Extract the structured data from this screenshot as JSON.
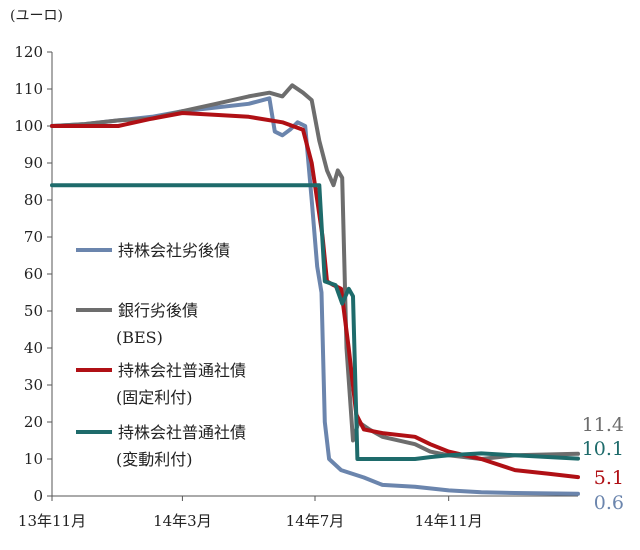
{
  "chart_data": {
    "type": "line",
    "ylabel": "(ユーロ)",
    "ylim": [
      0,
      120
    ],
    "yticks": [
      0,
      10,
      20,
      30,
      40,
      50,
      60,
      70,
      80,
      90,
      100,
      110,
      120
    ],
    "x_tick_labels": [
      "13年11月",
      "14年3月",
      "14年7月",
      "14年11月"
    ],
    "x_tick_dates": [
      "2013-11-01",
      "2014-03-01",
      "2014-07-01",
      "2014-11-01"
    ],
    "x_range": [
      "2013-11-01",
      "2015-02-28"
    ],
    "grid": false,
    "legend_position": "center-left",
    "series": [
      {
        "name": "持株会社劣後債",
        "color": "#6b85ad",
        "end_label": "0.6",
        "points": [
          [
            "2013-11-01",
            100
          ],
          [
            "2013-12-01",
            100.5
          ],
          [
            "2014-01-01",
            101.5
          ],
          [
            "2014-02-01",
            102.5
          ],
          [
            "2014-03-01",
            104
          ],
          [
            "2014-04-01",
            105
          ],
          [
            "2014-05-01",
            106
          ],
          [
            "2014-05-20",
            107.5
          ],
          [
            "2014-05-25",
            98.5
          ],
          [
            "2014-06-01",
            97.5
          ],
          [
            "2014-06-08",
            99
          ],
          [
            "2014-06-15",
            101
          ],
          [
            "2014-06-22",
            100
          ],
          [
            "2014-06-28",
            80
          ],
          [
            "2014-07-03",
            62
          ],
          [
            "2014-07-07",
            55
          ],
          [
            "2014-07-10",
            20
          ],
          [
            "2014-07-14",
            10
          ],
          [
            "2014-07-25",
            7
          ],
          [
            "2014-08-15",
            5
          ],
          [
            "2014-09-01",
            3
          ],
          [
            "2014-10-01",
            2.5
          ],
          [
            "2014-11-01",
            1.5
          ],
          [
            "2014-12-01",
            1
          ],
          [
            "2015-01-01",
            0.8
          ],
          [
            "2015-02-28",
            0.6
          ]
        ]
      },
      {
        "name": "銀行劣後債\n(BES)",
        "color": "#6d6d6d",
        "end_label": "11.4",
        "points": [
          [
            "2013-11-01",
            100
          ],
          [
            "2013-12-01",
            100.5
          ],
          [
            "2014-01-01",
            101.5
          ],
          [
            "2014-02-01",
            102
          ],
          [
            "2014-03-01",
            104
          ],
          [
            "2014-04-01",
            106
          ],
          [
            "2014-05-01",
            108
          ],
          [
            "2014-05-20",
            109
          ],
          [
            "2014-06-01",
            108
          ],
          [
            "2014-06-10",
            111
          ],
          [
            "2014-06-20",
            109
          ],
          [
            "2014-06-28",
            107
          ],
          [
            "2014-07-05",
            96
          ],
          [
            "2014-07-12",
            88
          ],
          [
            "2014-07-18",
            84
          ],
          [
            "2014-07-22",
            88
          ],
          [
            "2014-07-26",
            86
          ],
          [
            "2014-07-30",
            40
          ],
          [
            "2014-08-05",
            15
          ],
          [
            "2014-08-10",
            20
          ],
          [
            "2014-08-20",
            18
          ],
          [
            "2014-09-01",
            16
          ],
          [
            "2014-10-01",
            14
          ],
          [
            "2014-10-15",
            12
          ],
          [
            "2014-11-01",
            11
          ],
          [
            "2014-12-01",
            10
          ],
          [
            "2015-01-01",
            11
          ],
          [
            "2015-02-28",
            11.4
          ]
        ]
      },
      {
        "name": "持株会社普通社債\n(固定利付)",
        "color": "#b01015",
        "end_label": "5.1",
        "points": [
          [
            "2013-11-01",
            100
          ],
          [
            "2014-01-01",
            100
          ],
          [
            "2014-02-01",
            102
          ],
          [
            "2014-03-01",
            103.5
          ],
          [
            "2014-04-01",
            103
          ],
          [
            "2014-05-01",
            102.5
          ],
          [
            "2014-06-01",
            101
          ],
          [
            "2014-06-20",
            99
          ],
          [
            "2014-06-28",
            90
          ],
          [
            "2014-07-03",
            80
          ],
          [
            "2014-07-08",
            70
          ],
          [
            "2014-07-12",
            58
          ],
          [
            "2014-07-18",
            57
          ],
          [
            "2014-07-25",
            56
          ],
          [
            "2014-08-01",
            40
          ],
          [
            "2014-08-08",
            22
          ],
          [
            "2014-08-15",
            18
          ],
          [
            "2014-09-01",
            17
          ],
          [
            "2014-10-01",
            16
          ],
          [
            "2014-10-15",
            14
          ],
          [
            "2014-11-01",
            12
          ],
          [
            "2014-12-01",
            10
          ],
          [
            "2015-01-01",
            7
          ],
          [
            "2015-02-01",
            6
          ],
          [
            "2015-02-28",
            5.1
          ]
        ]
      },
      {
        "name": "持株会社普通社債\n(変動利付)",
        "color": "#1e6b6b",
        "end_label": "10.1",
        "points": [
          [
            "2013-11-01",
            84
          ],
          [
            "2014-07-05",
            84
          ],
          [
            "2014-07-10",
            58
          ],
          [
            "2014-07-20",
            57
          ],
          [
            "2014-07-26",
            52
          ],
          [
            "2014-08-01",
            56
          ],
          [
            "2014-08-05",
            54
          ],
          [
            "2014-08-09",
            10
          ],
          [
            "2014-09-01",
            10
          ],
          [
            "2014-10-01",
            10
          ],
          [
            "2014-10-15",
            10.5
          ],
          [
            "2014-11-01",
            11
          ],
          [
            "2014-12-01",
            11.5
          ],
          [
            "2015-01-01",
            11
          ],
          [
            "2015-02-28",
            10.1
          ]
        ]
      }
    ]
  }
}
